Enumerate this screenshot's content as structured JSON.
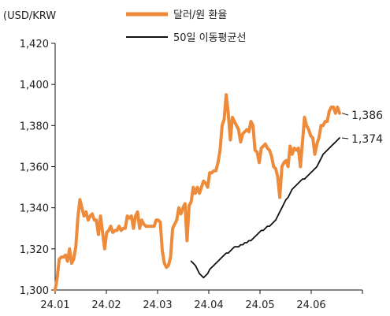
{
  "chart_data": {
    "type": "line",
    "unit_label": "(USD/KRW",
    "x_ticks": [
      "24.01",
      "24.02",
      "24.03",
      "24.04",
      "24.05",
      "24.06"
    ],
    "ylim": [
      1300,
      1420
    ],
    "y_ticks": [
      "1,300",
      "1,320",
      "1,340",
      "1,360",
      "1,380",
      "1,400",
      "1,420"
    ],
    "y_tick_values": [
      1300,
      1320,
      1340,
      1360,
      1380,
      1400,
      1420
    ],
    "grid": false,
    "legend_position": "top",
    "series": [
      {
        "name": "달러/원 환율",
        "color": "#ED8B3A",
        "end_label": "1,386",
        "values": [
          1300,
          1306,
          1315,
          1316,
          1316,
          1317,
          1314,
          1320,
          1313,
          1315,
          1321,
          1335,
          1344,
          1340,
          1336,
          1338,
          1334,
          1336,
          1337,
          1334,
          1334,
          1327,
          1336,
          1328,
          1320,
          1328,
          1329,
          1331,
          1328,
          1329,
          1329,
          1331,
          1329,
          1330,
          1330,
          1336,
          1335,
          1336,
          1330,
          1336,
          1338,
          1330,
          1334,
          1332,
          1331,
          1331,
          1331,
          1331,
          1331,
          1334,
          1334,
          1333,
          1319,
          1313,
          1311,
          1312,
          1316,
          1330,
          1332,
          1334,
          1340,
          1337,
          1340,
          1342,
          1324,
          1341,
          1343,
          1350,
          1347,
          1350,
          1347,
          1350,
          1353,
          1352,
          1350,
          1357,
          1357,
          1358,
          1358,
          1362,
          1368,
          1380,
          1383,
          1395,
          1386,
          1373,
          1384,
          1382,
          1380,
          1378,
          1372,
          1376,
          1377,
          1378,
          1377,
          1382,
          1380,
          1368,
          1367,
          1362,
          1369,
          1370,
          1371,
          1369,
          1368,
          1365,
          1360,
          1359,
          1355,
          1345,
          1360,
          1362,
          1363,
          1360,
          1370,
          1366,
          1369,
          1368,
          1369,
          1360,
          1372,
          1384,
          1380,
          1378,
          1375,
          1374,
          1366,
          1371,
          1374,
          1380,
          1380,
          1382,
          1382,
          1387,
          1389,
          1389,
          1386,
          1389,
          1386
        ]
      },
      {
        "name": "50일 이동평균선",
        "color": "#111111",
        "end_label": "1,374",
        "values": [
          1314,
          1313,
          1312,
          1310,
          1308,
          1307,
          1306,
          1307,
          1308,
          1310,
          1311,
          1312,
          1313,
          1314,
          1315,
          1316,
          1317,
          1318,
          1318,
          1319,
          1320,
          1321,
          1321,
          1321,
          1322,
          1322,
          1323,
          1323,
          1324,
          1324,
          1325,
          1326,
          1327,
          1328,
          1329,
          1329,
          1330,
          1331,
          1331,
          1332,
          1333,
          1334,
          1336,
          1338,
          1340,
          1342,
          1344,
          1345,
          1347,
          1349,
          1350,
          1351,
          1352,
          1353,
          1354,
          1354,
          1355,
          1356,
          1357,
          1358,
          1359,
          1360,
          1362,
          1364,
          1366,
          1367,
          1368,
          1369,
          1370,
          1371,
          1372,
          1373,
          1374
        ]
      }
    ]
  }
}
